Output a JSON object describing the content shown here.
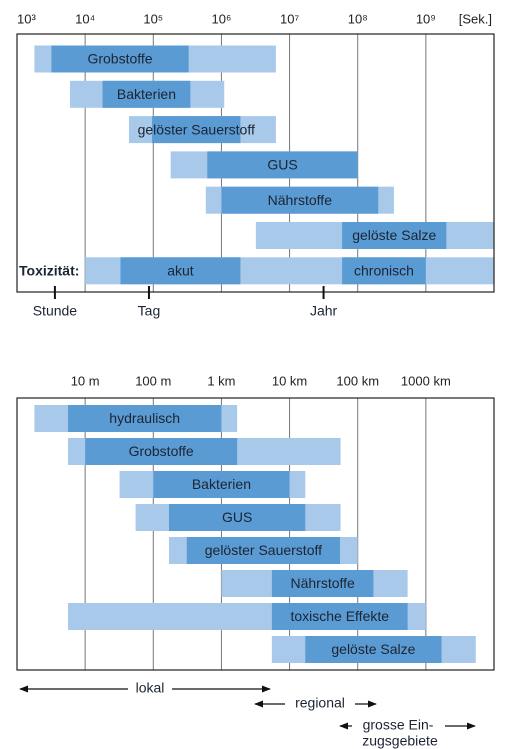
{
  "chart_data": [
    {
      "type": "range_bar",
      "xscale": "log",
      "grid": true,
      "x_unit": "[Sek.]",
      "xlim": [
        1000,
        10000000000
      ],
      "xticks": [
        {
          "value": 1000,
          "label": "10³"
        },
        {
          "value": 10000,
          "label": "10⁴"
        },
        {
          "value": 100000,
          "label": "10⁵"
        },
        {
          "value": 1000000,
          "label": "10⁶"
        },
        {
          "value": 10000000,
          "label": "10⁷"
        },
        {
          "value": 100000000,
          "label": "10⁸"
        },
        {
          "value": 1000000000,
          "label": "10⁹"
        }
      ],
      "outer_color": "#a9c9ea",
      "inner_color": "#5b9bd3",
      "rows": [
        {
          "outer": [
            1800,
            6300000
          ],
          "inner": [
            [
              3200,
              330000
            ]
          ],
          "labels": [
            "Grobstoffe"
          ]
        },
        {
          "outer": [
            6000,
            1100000
          ],
          "inner": [
            [
              18000,
              350000
            ]
          ],
          "labels": [
            "Bakterien"
          ]
        },
        {
          "outer": [
            44000,
            6300000
          ],
          "inner": [
            [
              96000,
              1900000
            ]
          ],
          "labels": [
            "gelöster Sauerstoff"
          ]
        },
        {
          "outer": [
            180000,
            100000000
          ],
          "inner": [
            [
              620000,
              100000000
            ]
          ],
          "labels": [
            "GUS"
          ]
        },
        {
          "outer": [
            590000,
            340000000
          ],
          "inner": [
            [
              1000000,
              200000000
            ]
          ],
          "labels": [
            "Nährstoffe"
          ]
        },
        {
          "outer": [
            3200000,
            10000000000
          ],
          "inner": [
            [
              59000000,
              2000000000
            ]
          ],
          "labels": [
            "gelöste Salze"
          ]
        },
        {
          "row_label": "Toxizität:",
          "outer": [
            10000,
            10000000000
          ],
          "inner": [
            [
              33000,
              1900000
            ],
            [
              59000000,
              1000000000
            ]
          ],
          "labels": [
            "akut",
            "chronisch"
          ]
        }
      ],
      "time_markers": [
        {
          "value": 3600,
          "label": "Stunde"
        },
        {
          "value": 86400,
          "label": "Tag"
        },
        {
          "value": 31536000,
          "label": "Jahr"
        }
      ]
    },
    {
      "type": "range_bar",
      "xscale": "log",
      "grid": true,
      "xlim": [
        1,
        10000000
      ],
      "xticks": [
        {
          "value": 10,
          "label": "10 m"
        },
        {
          "value": 100,
          "label": "100 m"
        },
        {
          "value": 1000,
          "label": "1 km"
        },
        {
          "value": 10000,
          "label": "10 km"
        },
        {
          "value": 100000,
          "label": "100 km"
        },
        {
          "value": 1000000,
          "label": "1000 km"
        }
      ],
      "outer_color": "#a9c9ea",
      "inner_color": "#5b9bd3",
      "rows": [
        {
          "outer": [
            1.8,
            1700
          ],
          "inner": [
            [
              5.6,
              1000
            ]
          ],
          "labels": [
            "hydraulisch"
          ]
        },
        {
          "outer": [
            5.6,
            56000
          ],
          "inner": [
            [
              10,
              1700
            ]
          ],
          "labels": [
            "Grobstoffe"
          ]
        },
        {
          "outer": [
            32,
            17000
          ],
          "inner": [
            [
              100,
              10000
            ]
          ],
          "labels": [
            "Bakterien"
          ]
        },
        {
          "outer": [
            55,
            56000
          ],
          "inner": [
            [
              170,
              17000
            ]
          ],
          "labels": [
            "GUS"
          ]
        },
        {
          "outer": [
            170,
            100000
          ],
          "inner": [
            [
              310,
              55000
            ]
          ],
          "labels": [
            "gelöster Sauerstoff"
          ]
        },
        {
          "outer": [
            1000,
            540000
          ],
          "inner": [
            [
              5500,
              170000
            ]
          ],
          "labels": [
            "Nährstoffe"
          ]
        },
        {
          "outer": [
            5.6,
            1000000
          ],
          "inner": [
            [
              5500,
              540000
            ]
          ],
          "labels": [
            "toxische Effekte"
          ]
        },
        {
          "outer": [
            5500,
            5400000
          ],
          "inner": [
            [
              17000,
              1700000
            ]
          ],
          "labels": [
            "gelöste Salze"
          ]
        }
      ],
      "annotations": [
        "lokal",
        "regional",
        "grosse Ein-",
        "zugsgebiete"
      ]
    }
  ]
}
